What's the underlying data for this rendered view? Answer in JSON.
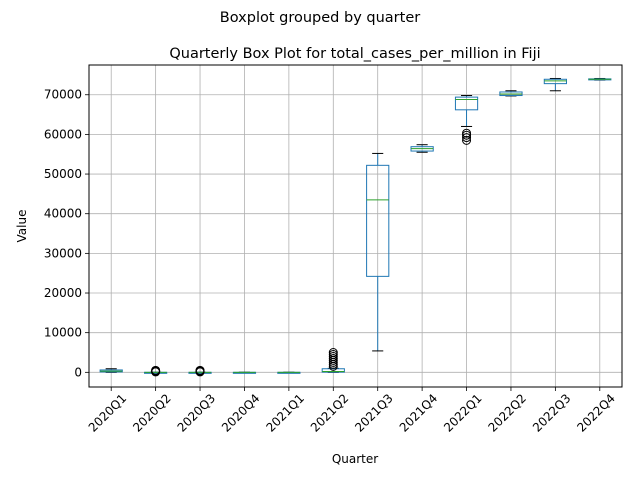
{
  "chart_data": {
    "type": "box",
    "suptitle": "Boxplot grouped by quarter",
    "title": "Quarterly Box Plot for total_cases_per_million in Fiji",
    "xlabel": "Quarter",
    "ylabel": "Value",
    "ylim": [
      -3700,
      77500
    ],
    "yticks": [
      0,
      10000,
      20000,
      30000,
      40000,
      50000,
      60000,
      70000
    ],
    "ytick_labels": [
      "0",
      "10000",
      "20000",
      "30000",
      "40000",
      "50000",
      "60000",
      "70000"
    ],
    "grid": true,
    "colors": {
      "box": "#1f77b4",
      "median": "#2ca02c",
      "whisker": "#000000",
      "grid": "#b0b0b0"
    },
    "categories": [
      "2020Q1",
      "2020Q2",
      "2020Q3",
      "2020Q4",
      "2021Q1",
      "2021Q2",
      "2021Q3",
      "2021Q4",
      "2022Q1",
      "2022Q2",
      "2022Q3",
      "2022Q4"
    ],
    "boxes": [
      {
        "whislo": 0,
        "q1": 100,
        "med": 300,
        "q3": 600,
        "whishi": 900,
        "fliers": []
      },
      {
        "whislo": 0,
        "q1": 0,
        "med": 0,
        "q3": 0,
        "whishi": 0,
        "fliers": [
          100,
          200,
          300,
          400,
          500
        ]
      },
      {
        "whislo": 0,
        "q1": 0,
        "med": 0,
        "q3": 0,
        "whishi": 0,
        "fliers": [
          100,
          200,
          300,
          400,
          500
        ]
      },
      {
        "whislo": 0,
        "q1": 0,
        "med": 0,
        "q3": 0,
        "whishi": 0,
        "fliers": []
      },
      {
        "whislo": 0,
        "q1": 0,
        "med": 0,
        "q3": 0,
        "whishi": 0,
        "fliers": []
      },
      {
        "whislo": 0,
        "q1": 50,
        "med": 200,
        "q3": 900,
        "whishi": 1000,
        "fliers": [
          1500,
          2000,
          2500,
          3000,
          3500,
          4000,
          4500,
          5000
        ]
      },
      {
        "whislo": 5400,
        "q1": 24200,
        "med": 43500,
        "q3": 52200,
        "whishi": 55200,
        "fliers": []
      },
      {
        "whislo": 55500,
        "q1": 55800,
        "med": 56400,
        "q3": 56900,
        "whishi": 57400,
        "fliers": []
      },
      {
        "whislo": 62000,
        "q1": 66200,
        "med": 68800,
        "q3": 69400,
        "whishi": 69800,
        "fliers": [
          58500,
          59200,
          59800,
          60300
        ]
      },
      {
        "whislo": 69700,
        "q1": 69800,
        "med": 70200,
        "q3": 70700,
        "whishi": 71000,
        "fliers": []
      },
      {
        "whislo": 71000,
        "q1": 72800,
        "med": 73500,
        "q3": 73900,
        "whishi": 74100,
        "fliers": []
      },
      {
        "whislo": 73700,
        "q1": 73800,
        "med": 73900,
        "q3": 74000,
        "whishi": 74100,
        "fliers": []
      }
    ]
  }
}
